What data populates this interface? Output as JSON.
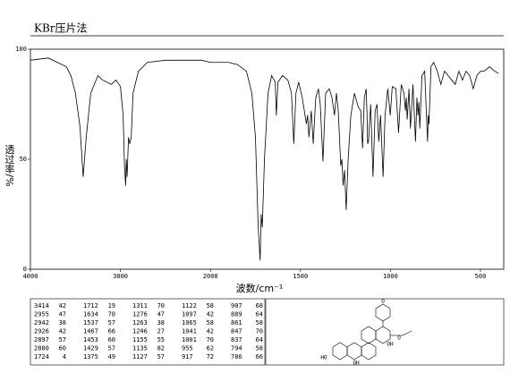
{
  "chart_data": {
    "type": "line",
    "title": "KBr压片法",
    "y_label": "透过率/%",
    "x_label": "波数/cm⁻¹",
    "xlim": [
      4000,
      400
    ],
    "xticks": [
      4000,
      3000,
      2000,
      1500,
      1000,
      500
    ],
    "ylim": [
      0,
      100
    ],
    "yticks": [
      0,
      50,
      100
    ],
    "color": "#000000",
    "x": [
      4000,
      3800,
      3700,
      3600,
      3550,
      3500,
      3450,
      3414,
      3380,
      3330,
      3250,
      3200,
      3100,
      3050,
      3000,
      2970,
      2955,
      2942,
      2935,
      2926,
      2910,
      2897,
      2880,
      2860,
      2800,
      2700,
      2500,
      2300,
      2100,
      2000,
      1900,
      1850,
      1800,
      1770,
      1750,
      1735,
      1724,
      1718,
      1712,
      1700,
      1680,
      1660,
      1640,
      1634,
      1625,
      1600,
      1570,
      1550,
      1537,
      1525,
      1510,
      1490,
      1467,
      1460,
      1453,
      1440,
      1429,
      1415,
      1400,
      1390,
      1375,
      1360,
      1340,
      1325,
      1311,
      1300,
      1290,
      1276,
      1270,
      1263,
      1255,
      1246,
      1235,
      1220,
      1200,
      1180,
      1165,
      1155,
      1145,
      1135,
      1130,
      1127,
      1122,
      1110,
      1097,
      1085,
      1075,
      1065,
      1055,
      1041,
      1030,
      1015,
      1001,
      990,
      970,
      955,
      940,
      925,
      917,
      912,
      907,
      897,
      889,
      875,
      861,
      853,
      847,
      842,
      837,
      825,
      810,
      794,
      790,
      786,
      775,
      760,
      740,
      720,
      700,
      680,
      660,
      640,
      620,
      600,
      580,
      560,
      540,
      520,
      500,
      480,
      450,
      420,
      400
    ],
    "values": [
      95,
      96,
      94,
      92,
      88,
      80,
      65,
      42,
      60,
      80,
      88,
      86,
      84,
      86,
      83,
      70,
      47,
      38,
      50,
      42,
      60,
      57,
      60,
      80,
      90,
      94,
      95,
      95,
      95,
      94,
      94,
      93,
      90,
      80,
      60,
      20,
      4,
      25,
      19,
      50,
      80,
      88,
      85,
      70,
      85,
      88,
      86,
      80,
      57,
      80,
      85,
      78,
      66,
      70,
      60,
      72,
      57,
      78,
      82,
      75,
      49,
      80,
      82,
      78,
      70,
      80,
      72,
      47,
      50,
      38,
      45,
      27,
      50,
      70,
      80,
      74,
      72,
      55,
      78,
      82,
      70,
      57,
      58,
      75,
      42,
      72,
      75,
      58,
      70,
      42,
      70,
      82,
      70,
      83,
      82,
      62,
      84,
      80,
      72,
      78,
      68,
      82,
      64,
      84,
      58,
      78,
      70,
      76,
      64,
      88,
      90,
      58,
      70,
      66,
      92,
      94,
      90,
      84,
      90,
      88,
      86,
      84,
      90,
      86,
      90,
      88,
      82,
      88,
      90,
      90,
      92,
      90,
      89
    ],
    "peaks": {
      "wavenumbers": [
        3414,
        2955,
        2942,
        2926,
        2897,
        2880,
        1724,
        1712,
        1634,
        1537,
        1467,
        1453,
        1429,
        1375,
        1311,
        1276,
        1263,
        1246,
        1155,
        1135,
        1127,
        1122,
        1097,
        1065,
        1041,
        1001,
        955,
        917,
        907,
        889,
        861,
        847,
        837,
        794,
        786
      ],
      "transmittance": [
        42,
        47,
        38,
        42,
        57,
        60,
        4,
        19,
        70,
        57,
        66,
        60,
        57,
        49,
        70,
        47,
        38,
        27,
        55,
        82,
        57,
        58,
        42,
        58,
        42,
        70,
        62,
        72,
        68,
        64,
        58,
        70,
        64,
        58,
        66
      ]
    },
    "structure_labels": [
      "O",
      "O",
      "HO",
      "OH",
      "OH"
    ]
  }
}
